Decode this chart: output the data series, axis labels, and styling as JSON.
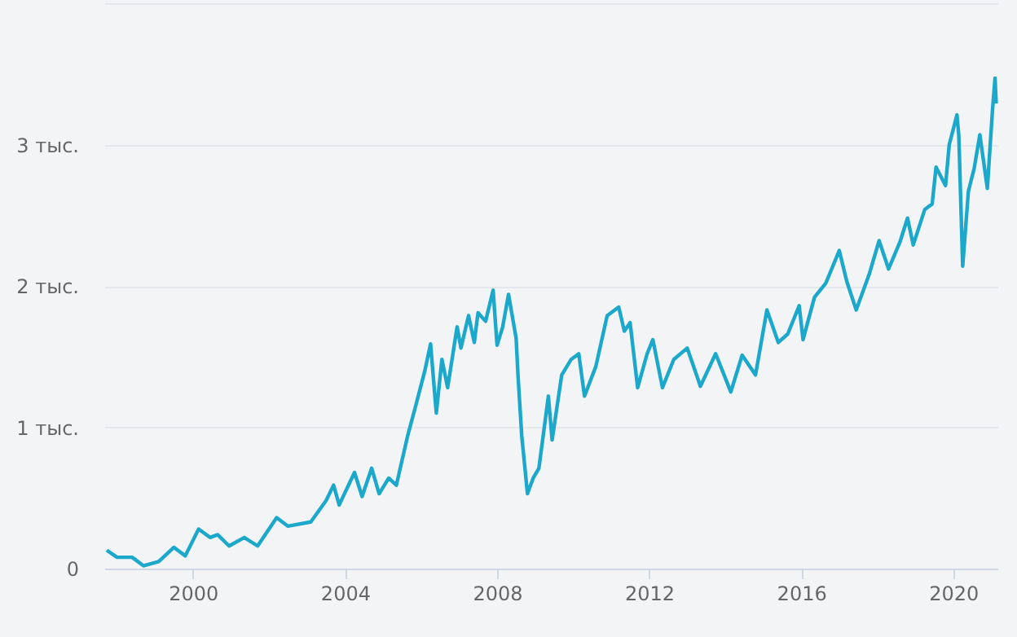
{
  "chart_data": {
    "type": "line",
    "x": [
      "1997-09-24",
      "1998-01-01",
      "1998-05-26",
      "1998-09-12",
      "1999-02-06",
      "1999-07-02",
      "1999-10-19",
      "2000-02-24",
      "2000-06-13",
      "2000-08-25",
      "2000-12-13",
      "2001-05-08",
      "2001-09-13",
      "2002-03-15",
      "2002-07-02",
      "2003-02-06",
      "2003-07-02",
      "2003-09-13",
      "2003-11-06",
      "2004-04-01",
      "2004-06-13",
      "2004-09-13",
      "2004-11-24",
      "2005-02-24",
      "2005-05-08",
      "2005-08-25",
      "2005-11-06",
      "2006-02-06",
      "2006-04-02",
      "2006-05-27",
      "2006-07-20",
      "2006-09-13",
      "2006-12-13",
      "2007-01-19",
      "2007-04-02",
      "2007-05-27",
      "2007-07-02",
      "2007-09-13",
      "2007-11-24",
      "2008-01-01",
      "2008-02-24",
      "2008-04-20",
      "2008-07-02",
      "2008-07-20",
      "2008-08-25",
      "2008-10-19",
      "2008-12-13",
      "2009-02-06",
      "2009-05-08",
      "2009-06-13",
      "2009-09-13",
      "2009-12-13",
      "2010-02-24",
      "2010-04-20",
      "2010-08-07",
      "2010-11-24",
      "2011-03-15",
      "2011-05-08",
      "2011-07-02",
      "2011-09-13",
      "2011-12-13",
      "2012-02-06",
      "2012-05-08",
      "2012-08-25",
      "2013-01-01",
      "2013-05-08",
      "2013-10-01",
      "2014-02-24",
      "2014-06-13",
      "2014-10-19",
      "2015-02-06",
      "2015-05-26",
      "2015-08-25",
      "2015-12-13",
      "2016-01-19",
      "2016-05-08",
      "2016-08-25",
      "2017-01-01",
      "2017-03-15",
      "2017-06-13",
      "2017-10-19",
      "2018-01-19",
      "2018-04-20",
      "2018-08-07",
      "2018-10-19",
      "2018-12-13",
      "2019-04-02",
      "2019-06-13",
      "2019-07-20",
      "2019-10-19",
      "2019-11-24",
      "2020-02-06",
      "2020-02-24",
      "2020-04-01",
      "2020-05-26",
      "2020-07-20",
      "2020-09-13",
      "2020-11-24",
      "2021-01-12",
      "2021-02-06",
      "2021-02-17"
    ],
    "series": [
      {
        "color": "#1ba8cb",
        "values": [
          0.13,
          0.08,
          0.08,
          0.02,
          0.05,
          0.15,
          0.09,
          0.28,
          0.22,
          0.24,
          0.16,
          0.22,
          0.16,
          0.36,
          0.3,
          0.33,
          0.48,
          0.59,
          0.45,
          0.68,
          0.51,
          0.71,
          0.53,
          0.64,
          0.59,
          0.94,
          1.14,
          1.4,
          1.59,
          1.1,
          1.48,
          1.28,
          1.71,
          1.56,
          1.79,
          1.6,
          1.81,
          1.75,
          1.97,
          1.58,
          1.71,
          1.94,
          1.63,
          1.37,
          0.94,
          0.53,
          0.64,
          0.71,
          1.22,
          0.91,
          1.37,
          1.48,
          1.52,
          1.22,
          1.43,
          1.79,
          1.85,
          1.68,
          1.74,
          1.28,
          1.52,
          1.62,
          1.28,
          1.48,
          1.56,
          1.29,
          1.52,
          1.25,
          1.51,
          1.37,
          1.83,
          1.6,
          1.66,
          1.86,
          1.62,
          1.92,
          2.02,
          2.25,
          2.03,
          1.83,
          2.09,
          2.32,
          2.12,
          2.31,
          2.48,
          2.29,
          2.54,
          2.58,
          2.84,
          2.71,
          3.0,
          3.21,
          3.06,
          2.14,
          2.67,
          2.83,
          3.07,
          2.69,
          3.24,
          3.47,
          3.29
        ]
      }
    ],
    "xlim": [
      "1997-09-01",
      "2021-03-01"
    ],
    "xticks": [
      "2000",
      "2004",
      "2008",
      "2012",
      "2016",
      "2020"
    ],
    "ylim": [
      0,
      4
    ],
    "yticks": [
      0,
      {
        "value": 1,
        "label": "1 тыс."
      },
      {
        "value": 2,
        "label": "2 тыс."
      },
      {
        "value": 3,
        "label": "3 тыс."
      },
      {
        "value": 4,
        "label": null
      }
    ],
    "grid": "y"
  }
}
